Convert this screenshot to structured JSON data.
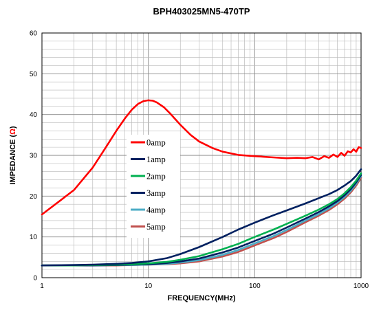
{
  "chart_data": {
    "type": "line",
    "title": "BPH403025MN5-470TP",
    "xlabel": "FREQUENCY(MHz)",
    "ylabel_prefix": "IMPEDANCE (",
    "ylabel_unit": "Ω",
    "ylabel_suffix": ")",
    "x_scale": "log",
    "xlim": [
      1,
      1000
    ],
    "ylim": [
      0,
      60
    ],
    "x_ticks": [
      "1",
      "10",
      "100",
      "1000"
    ],
    "y_ticks": [
      "0",
      "10",
      "20",
      "30",
      "40",
      "50",
      "60"
    ],
    "grid": true,
    "legend_position": "center-left",
    "series": [
      {
        "name": "0amp",
        "color": "#ff0000",
        "x": [
          1,
          1.5,
          2,
          3,
          4,
          5,
          6,
          7,
          8,
          9,
          10,
          11,
          12,
          14,
          16,
          20,
          25,
          30,
          40,
          50,
          70,
          100,
          150,
          200,
          250,
          300,
          350,
          400,
          450,
          500,
          550,
          600,
          650,
          700,
          750,
          800,
          850,
          900,
          950,
          1000
        ],
        "y": [
          15.5,
          19,
          21.5,
          27,
          32,
          36,
          39,
          41.2,
          42.6,
          43.3,
          43.5,
          43.4,
          43.0,
          41.8,
          40.3,
          37.5,
          35.0,
          33.4,
          31.8,
          30.9,
          30.1,
          29.8,
          29.5,
          29.3,
          29.4,
          29.3,
          29.6,
          29.0,
          29.8,
          29.4,
          30.2,
          29.6,
          30.6,
          29.9,
          31.0,
          30.7,
          31.5,
          30.9,
          32.0,
          31.8
        ]
      },
      {
        "name": "1amp",
        "color": "#002060",
        "x": [
          1,
          2,
          3,
          5,
          7,
          10,
          15,
          20,
          30,
          50,
          70,
          100,
          150,
          200,
          300,
          400,
          500,
          600,
          700,
          800,
          900,
          1000
        ],
        "y": [
          3.0,
          3.1,
          3.2,
          3.4,
          3.6,
          4.0,
          4.8,
          5.8,
          7.5,
          10.0,
          11.8,
          13.5,
          15.3,
          16.5,
          18.2,
          19.5,
          20.5,
          21.5,
          22.6,
          23.7,
          25.0,
          26.6
        ]
      },
      {
        "name": "2amp",
        "color": "#00b050",
        "x": [
          1,
          2,
          3,
          5,
          7,
          10,
          15,
          20,
          30,
          50,
          70,
          100,
          150,
          200,
          300,
          400,
          500,
          600,
          700,
          800,
          900,
          1000
        ],
        "y": [
          3.0,
          3.0,
          3.1,
          3.2,
          3.3,
          3.5,
          3.9,
          4.4,
          5.3,
          7.0,
          8.3,
          10.0,
          11.8,
          13.2,
          15.2,
          16.7,
          18.0,
          19.3,
          20.7,
          22.2,
          23.8,
          25.6
        ]
      },
      {
        "name": "3amp",
        "color": "#002060",
        "x": [
          1,
          2,
          3,
          5,
          7,
          10,
          15,
          20,
          30,
          50,
          70,
          100,
          150,
          200,
          300,
          400,
          500,
          600,
          700,
          800,
          900,
          1000
        ],
        "y": [
          3.0,
          3.0,
          3.0,
          3.1,
          3.2,
          3.3,
          3.6,
          4.0,
          4.7,
          6.2,
          7.4,
          9.0,
          10.8,
          12.3,
          14.5,
          16.1,
          17.5,
          18.8,
          20.2,
          21.7,
          23.4,
          25.2
        ]
      },
      {
        "name": "4amp",
        "color": "#4bacc6",
        "x": [
          1,
          2,
          3,
          5,
          7,
          10,
          15,
          20,
          30,
          50,
          70,
          100,
          150,
          200,
          300,
          400,
          500,
          600,
          700,
          800,
          900,
          1000
        ],
        "y": [
          3.0,
          3.0,
          3.0,
          3.1,
          3.1,
          3.2,
          3.4,
          3.7,
          4.3,
          5.6,
          6.8,
          8.4,
          10.2,
          11.7,
          14.0,
          15.6,
          17.0,
          18.4,
          19.8,
          21.3,
          23.0,
          24.9
        ]
      },
      {
        "name": "5amp",
        "color": "#c0504d",
        "x": [
          1,
          2,
          3,
          5,
          7,
          10,
          15,
          20,
          30,
          50,
          70,
          100,
          150,
          200,
          300,
          400,
          500,
          600,
          700,
          800,
          900,
          1000
        ],
        "y": [
          3.0,
          3.0,
          3.0,
          3.0,
          3.1,
          3.2,
          3.3,
          3.5,
          4.0,
          5.2,
          6.3,
          7.9,
          9.7,
          11.2,
          13.6,
          15.2,
          16.6,
          18.0,
          19.4,
          20.9,
          22.6,
          24.5
        ]
      }
    ]
  }
}
